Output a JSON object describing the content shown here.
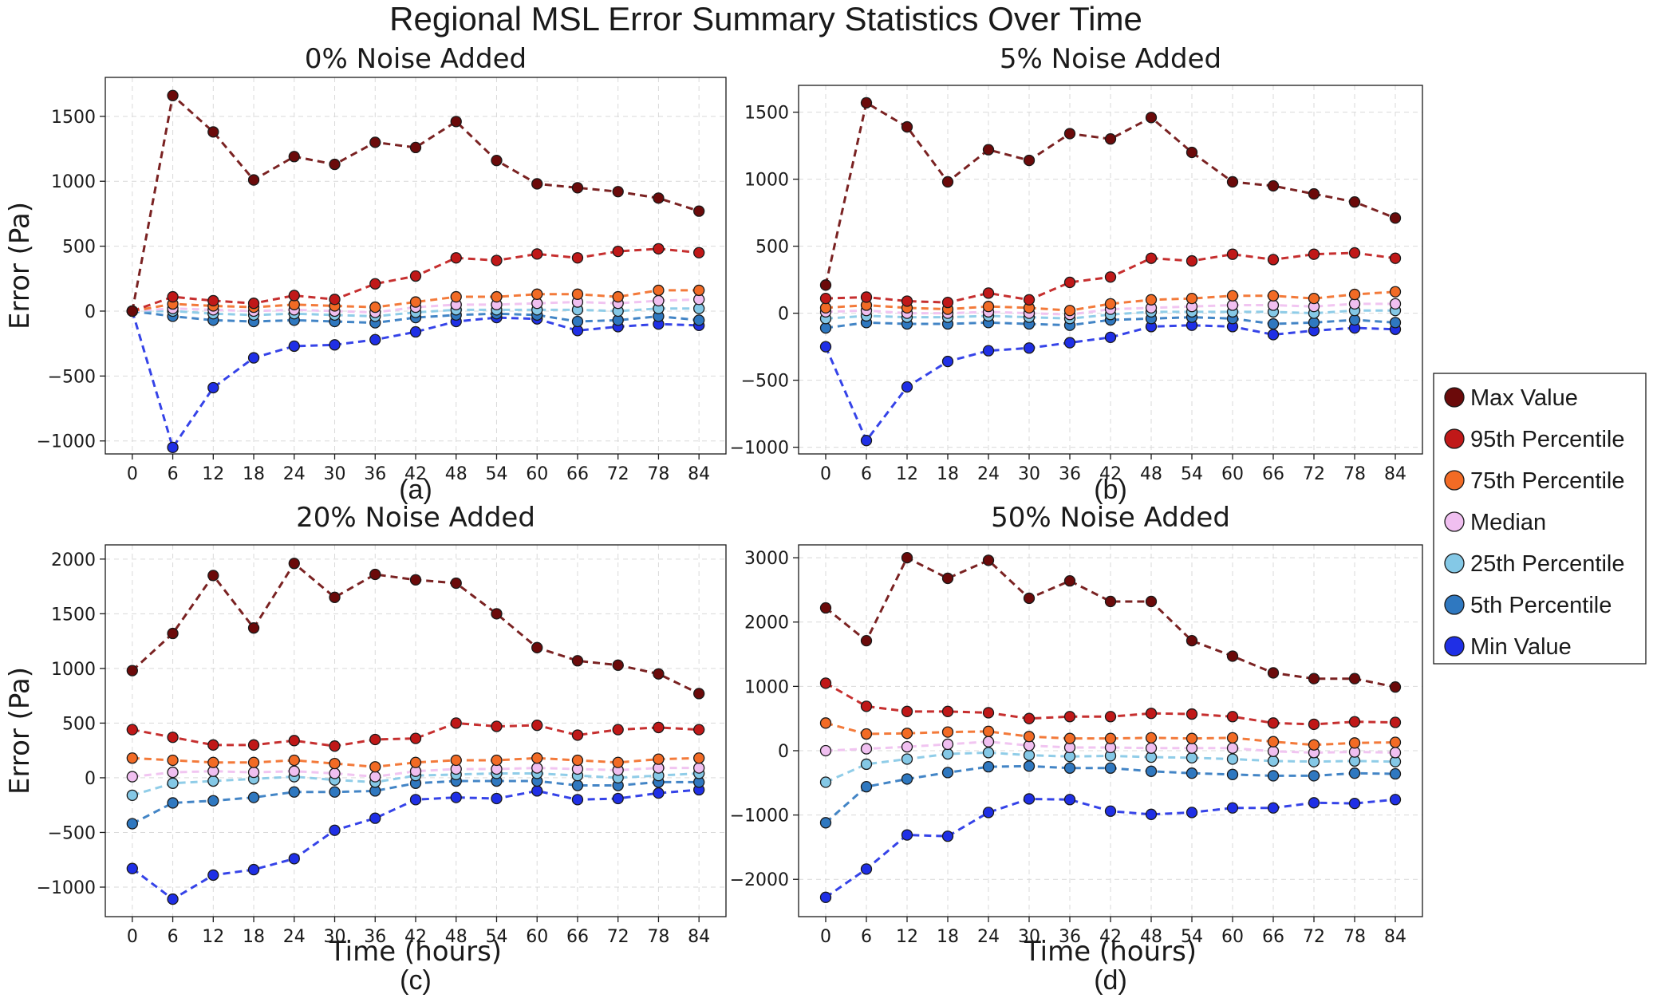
{
  "figure": {
    "title": "Regional MSL Error Summary Statistics Over Time"
  },
  "colors": {
    "Max Value": "#6b0a0a",
    "95th Percentile": "#c01818",
    "75th Percentile": "#f26b25",
    "Median": "#f0bff0",
    "25th Percentile": "#84c8e6",
    "5th Percentile": "#2f78c0",
    "Min Value": "#1f2fe6"
  },
  "legend": {
    "placement": "right",
    "entries": [
      "Max Value",
      "95th Percentile",
      "75th Percentile",
      "Median",
      "25th Percentile",
      "5th Percentile",
      "Min Value"
    ]
  },
  "chart_data": [
    {
      "type": "line",
      "title": "0% Noise Added",
      "panel_label": "(a)",
      "xlabel": "",
      "ylabel": "Error (Pa)",
      "x": [
        0,
        6,
        12,
        18,
        24,
        30,
        36,
        42,
        48,
        54,
        60,
        66,
        72,
        78,
        84
      ],
      "ylim": [
        -1100,
        1800
      ],
      "yticks": [
        -1000,
        -500,
        0,
        500,
        1000,
        1500
      ],
      "grid": true,
      "series": [
        {
          "name": "Max Value",
          "values": [
            0,
            1660,
            1380,
            1010,
            1190,
            1130,
            1300,
            1260,
            1460,
            1160,
            980,
            950,
            920,
            870,
            770
          ]
        },
        {
          "name": "95th Percentile",
          "values": [
            0,
            110,
            80,
            60,
            120,
            90,
            210,
            270,
            410,
            390,
            440,
            410,
            460,
            480,
            450
          ]
        },
        {
          "name": "75th Percentile",
          "values": [
            0,
            55,
            40,
            30,
            50,
            40,
            30,
            70,
            110,
            110,
            130,
            130,
            110,
            160,
            160
          ]
        },
        {
          "name": "Median",
          "values": [
            0,
            20,
            10,
            0,
            10,
            0,
            -10,
            30,
            50,
            50,
            60,
            70,
            60,
            80,
            90
          ]
        },
        {
          "name": "25th Percentile",
          "values": [
            0,
            0,
            -20,
            -30,
            -20,
            -30,
            -40,
            -10,
            10,
            10,
            10,
            10,
            0,
            20,
            20
          ]
        },
        {
          "name": "5th Percentile",
          "values": [
            0,
            -40,
            -70,
            -80,
            -70,
            -80,
            -90,
            -50,
            -30,
            -20,
            -30,
            -80,
            -70,
            -40,
            -70
          ]
        },
        {
          "name": "Min Value",
          "values": [
            0,
            -1050,
            -590,
            -360,
            -270,
            -260,
            -220,
            -160,
            -80,
            -50,
            -60,
            -150,
            -120,
            -100,
            -110
          ]
        }
      ]
    },
    {
      "type": "line",
      "title": "5% Noise Added",
      "panel_label": "(b)",
      "xlabel": "",
      "ylabel": "",
      "x": [
        0,
        6,
        12,
        18,
        24,
        30,
        36,
        42,
        48,
        54,
        60,
        66,
        72,
        78,
        84
      ],
      "ylim": [
        -1050,
        1700
      ],
      "yticks": [
        -1000,
        -500,
        0,
        500,
        1000,
        1500
      ],
      "grid": true,
      "series": [
        {
          "name": "Max Value",
          "values": [
            210,
            1570,
            1390,
            980,
            1220,
            1140,
            1340,
            1300,
            1460,
            1200,
            980,
            950,
            890,
            830,
            710
          ]
        },
        {
          "name": "95th Percentile",
          "values": [
            110,
            120,
            90,
            80,
            150,
            100,
            230,
            270,
            410,
            390,
            440,
            400,
            440,
            450,
            410
          ]
        },
        {
          "name": "75th Percentile",
          "values": [
            40,
            60,
            40,
            30,
            50,
            40,
            20,
            70,
            100,
            110,
            130,
            130,
            110,
            140,
            160
          ]
        },
        {
          "name": "Median",
          "values": [
            10,
            20,
            0,
            0,
            10,
            0,
            -10,
            30,
            40,
            50,
            60,
            60,
            50,
            70,
            70
          ]
        },
        {
          "name": "25th Percentile",
          "values": [
            -40,
            -20,
            -30,
            -30,
            -20,
            -30,
            -40,
            -10,
            10,
            10,
            10,
            10,
            0,
            20,
            20
          ]
        },
        {
          "name": "5th Percentile",
          "values": [
            -110,
            -70,
            -80,
            -80,
            -70,
            -80,
            -90,
            -50,
            -40,
            -30,
            -40,
            -80,
            -70,
            -50,
            -70
          ]
        },
        {
          "name": "Min Value",
          "values": [
            -250,
            -950,
            -550,
            -360,
            -280,
            -260,
            -220,
            -180,
            -100,
            -90,
            -100,
            -160,
            -130,
            -110,
            -120
          ]
        }
      ]
    },
    {
      "type": "line",
      "title": "20% Noise Added",
      "panel_label": "(c)",
      "xlabel": "Time (hours)",
      "ylabel": "Error (Pa)",
      "x": [
        0,
        6,
        12,
        18,
        24,
        30,
        36,
        42,
        48,
        54,
        60,
        66,
        72,
        78,
        84
      ],
      "ylim": [
        -1270,
        2130
      ],
      "yticks": [
        -1000,
        -500,
        0,
        500,
        1000,
        1500,
        2000
      ],
      "grid": true,
      "series": [
        {
          "name": "Max Value",
          "values": [
            980,
            1320,
            1850,
            1370,
            1960,
            1650,
            1860,
            1810,
            1780,
            1500,
            1190,
            1070,
            1030,
            950,
            770
          ]
        },
        {
          "name": "95th Percentile",
          "values": [
            440,
            370,
            300,
            300,
            340,
            290,
            350,
            360,
            500,
            470,
            480,
            390,
            440,
            460,
            440
          ]
        },
        {
          "name": "75th Percentile",
          "values": [
            180,
            160,
            140,
            140,
            160,
            130,
            100,
            140,
            160,
            160,
            180,
            160,
            140,
            170,
            180
          ]
        },
        {
          "name": "Median",
          "values": [
            10,
            50,
            60,
            50,
            60,
            40,
            10,
            60,
            80,
            80,
            90,
            80,
            70,
            90,
            90
          ]
        },
        {
          "name": "25th Percentile",
          "values": [
            -160,
            -50,
            -30,
            -10,
            10,
            -20,
            -40,
            20,
            30,
            40,
            40,
            20,
            0,
            20,
            40
          ]
        },
        {
          "name": "5th Percentile",
          "values": [
            -420,
            -230,
            -210,
            -180,
            -130,
            -130,
            -120,
            -50,
            -30,
            -30,
            -30,
            -70,
            -70,
            -40,
            -40
          ]
        },
        {
          "name": "Min Value",
          "values": [
            -830,
            -1110,
            -890,
            -840,
            -740,
            -480,
            -370,
            -200,
            -180,
            -190,
            -120,
            -200,
            -190,
            -140,
            -110
          ]
        }
      ]
    },
    {
      "type": "line",
      "title": "50% Noise Added",
      "panel_label": "(d)",
      "xlabel": "Time (hours)",
      "ylabel": "",
      "x": [
        0,
        6,
        12,
        18,
        24,
        30,
        36,
        42,
        48,
        54,
        60,
        66,
        72,
        78,
        84
      ],
      "ylim": [
        -2580,
        3200
      ],
      "yticks": [
        -2000,
        -1000,
        0,
        1000,
        2000,
        3000
      ],
      "grid": true,
      "series": [
        {
          "name": "Max Value",
          "values": [
            2220,
            1710,
            3000,
            2680,
            2960,
            2370,
            2640,
            2320,
            2320,
            1710,
            1470,
            1210,
            1120,
            1120,
            990
          ]
        },
        {
          "name": "95th Percentile",
          "values": [
            1050,
            690,
            610,
            610,
            590,
            500,
            530,
            530,
            580,
            570,
            530,
            430,
            410,
            450,
            440
          ]
        },
        {
          "name": "75th Percentile",
          "values": [
            430,
            260,
            270,
            290,
            300,
            220,
            190,
            190,
            200,
            190,
            200,
            140,
            90,
            120,
            130
          ]
        },
        {
          "name": "Median",
          "values": [
            0,
            30,
            60,
            100,
            140,
            80,
            50,
            50,
            40,
            40,
            40,
            -10,
            -30,
            -20,
            -30
          ]
        },
        {
          "name": "25th Percentile",
          "values": [
            -490,
            -210,
            -130,
            -50,
            -30,
            -70,
            -90,
            -80,
            -100,
            -110,
            -130,
            -160,
            -170,
            -160,
            -170
          ]
        },
        {
          "name": "5th Percentile",
          "values": [
            -1120,
            -560,
            -440,
            -340,
            -250,
            -240,
            -270,
            -270,
            -320,
            -350,
            -370,
            -390,
            -390,
            -350,
            -360
          ]
        },
        {
          "name": "Min Value",
          "values": [
            -2280,
            -1840,
            -1310,
            -1330,
            -960,
            -750,
            -760,
            -940,
            -990,
            -960,
            -890,
            -890,
            -810,
            -820,
            -760
          ]
        }
      ]
    }
  ]
}
